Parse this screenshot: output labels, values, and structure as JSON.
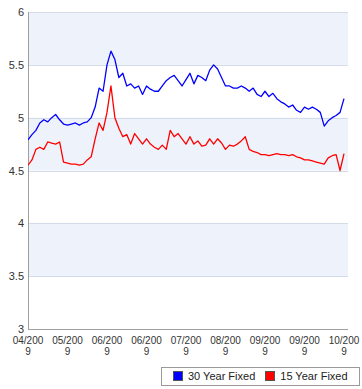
{
  "chart_data": {
    "type": "line",
    "categories": [
      "04/2009",
      null,
      null,
      null,
      null,
      null,
      null,
      null,
      null,
      null,
      "05/2009",
      null,
      null,
      null,
      null,
      null,
      null,
      null,
      null,
      null,
      "06/2009",
      null,
      null,
      null,
      null,
      null,
      null,
      null,
      null,
      null,
      "06/2009",
      null,
      null,
      null,
      null,
      null,
      null,
      null,
      null,
      null,
      "07/2009",
      null,
      null,
      null,
      null,
      null,
      null,
      null,
      null,
      null,
      "08/2009",
      null,
      null,
      null,
      null,
      null,
      null,
      null,
      null,
      null,
      "09/2009",
      null,
      null,
      null,
      null,
      null,
      null,
      null,
      null,
      null,
      "09/2009",
      null,
      null,
      null,
      null,
      null,
      null,
      null,
      null,
      null,
      "10/2009"
    ],
    "series": [
      {
        "name": "30 Year Fixed",
        "color": "#0000ff",
        "values": [
          4.79,
          4.84,
          4.88,
          4.95,
          4.98,
          4.96,
          5.0,
          5.03,
          4.98,
          4.94,
          4.93,
          4.94,
          4.95,
          4.93,
          4.95,
          4.96,
          5.0,
          5.1,
          5.28,
          5.25,
          5.5,
          5.63,
          5.55,
          5.38,
          5.42,
          5.3,
          5.32,
          5.28,
          5.3,
          5.22,
          5.3,
          5.27,
          5.25,
          5.25,
          5.3,
          5.35,
          5.38,
          5.4,
          5.35,
          5.3,
          5.36,
          5.42,
          5.32,
          5.4,
          5.38,
          5.35,
          5.45,
          5.5,
          5.46,
          5.38,
          5.3,
          5.3,
          5.28,
          5.28,
          5.3,
          5.28,
          5.25,
          5.28,
          5.22,
          5.2,
          5.25,
          5.2,
          5.23,
          5.18,
          5.15,
          5.13,
          5.1,
          5.12,
          5.07,
          5.05,
          5.1,
          5.08,
          5.1,
          5.08,
          5.05,
          4.92,
          4.97,
          5.0,
          5.02,
          5.05,
          5.18
        ]
      },
      {
        "name": "15 Year Fixed",
        "color": "#ff0000",
        "values": [
          4.55,
          4.6,
          4.7,
          4.72,
          4.7,
          4.77,
          4.76,
          4.75,
          4.77,
          4.58,
          4.57,
          4.56,
          4.56,
          4.55,
          4.56,
          4.6,
          4.63,
          4.8,
          4.95,
          4.88,
          5.05,
          5.3,
          5.0,
          4.9,
          4.82,
          4.84,
          4.75,
          4.85,
          4.8,
          4.75,
          4.8,
          4.75,
          4.72,
          4.7,
          4.74,
          4.7,
          4.88,
          4.82,
          4.85,
          4.8,
          4.75,
          4.82,
          4.75,
          4.78,
          4.73,
          4.74,
          4.8,
          4.75,
          4.8,
          4.76,
          4.7,
          4.74,
          4.73,
          4.75,
          4.78,
          4.82,
          4.7,
          4.68,
          4.67,
          4.65,
          4.65,
          4.64,
          4.65,
          4.66,
          4.65,
          4.65,
          4.64,
          4.65,
          4.63,
          4.62,
          4.6,
          4.6,
          4.59,
          4.58,
          4.57,
          4.56,
          4.62,
          4.64,
          4.65,
          4.5,
          4.66
        ]
      }
    ],
    "ylim": [
      3,
      6
    ],
    "yticks": [
      3,
      3.5,
      4,
      4.5,
      5,
      5.5,
      6
    ],
    "grid": true,
    "legend": "bottom"
  }
}
